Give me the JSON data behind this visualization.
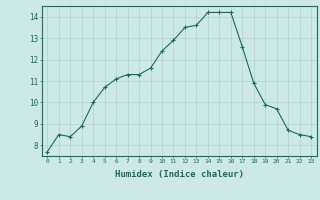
{
  "x": [
    0,
    1,
    2,
    3,
    4,
    5,
    6,
    7,
    8,
    9,
    10,
    11,
    12,
    13,
    14,
    15,
    16,
    17,
    18,
    19,
    20,
    21,
    22,
    23
  ],
  "y": [
    7.7,
    8.5,
    8.4,
    8.9,
    10.0,
    10.7,
    11.1,
    11.3,
    11.3,
    11.6,
    12.4,
    12.9,
    13.5,
    13.6,
    14.2,
    14.2,
    14.2,
    12.6,
    10.9,
    9.9,
    9.7,
    8.7,
    8.5,
    8.4
  ],
  "xlabel": "Humidex (Indice chaleur)",
  "xlim": [
    -0.5,
    23.5
  ],
  "ylim": [
    7.5,
    14.5
  ],
  "yticks": [
    8,
    9,
    10,
    11,
    12,
    13,
    14
  ],
  "xticks": [
    0,
    1,
    2,
    3,
    4,
    5,
    6,
    7,
    8,
    9,
    10,
    11,
    12,
    13,
    14,
    15,
    16,
    17,
    18,
    19,
    20,
    21,
    22,
    23
  ],
  "line_color": "#1a6b5a",
  "marker": "+",
  "bg_color": "#cce9e5",
  "grid_color": "#b0d4cf",
  "axis_color": "#1a6b5a",
  "tick_color": "#1a6b5a",
  "label_color": "#1a6b5a"
}
